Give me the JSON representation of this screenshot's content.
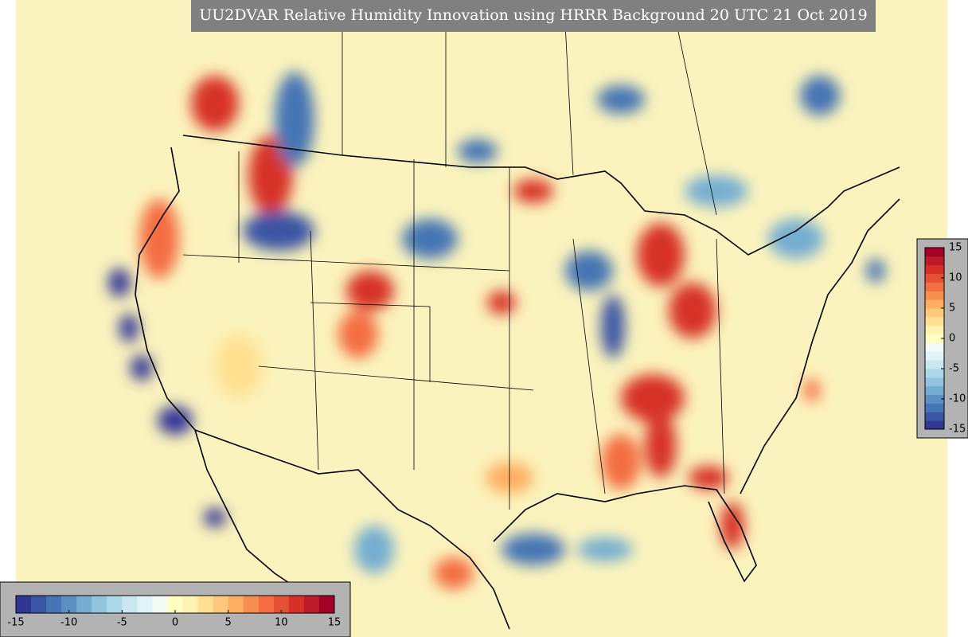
{
  "title": "UU2DVAR Relative Humidity Innovation using HRRR Background 20 UTC 21 Oct 2019",
  "colors": [
    "#313695",
    "#3a55a4",
    "#4575b4",
    "#5b8fc3",
    "#74add1",
    "#93c3dd",
    "#abd9e9",
    "#c9e7f1",
    "#e0f3f8",
    "#f3fbf6",
    "#ffffbf",
    "#fff3b3",
    "#fee090",
    "#fdc77d",
    "#fdae61",
    "#f88d52",
    "#f46d43",
    "#e45236",
    "#d73027",
    "#bf1a2a",
    "#a50026"
  ],
  "colorbars": [
    {
      "orientation": "vertical",
      "lim": [
        -15,
        15
      ],
      "ticks": [
        15,
        10,
        5,
        0,
        -5,
        -10,
        -15
      ]
    },
    {
      "orientation": "horizontal",
      "lim": [
        -15,
        15
      ],
      "ticks": [
        -15,
        -10,
        -5,
        0,
        5,
        10,
        15
      ]
    }
  ]
}
